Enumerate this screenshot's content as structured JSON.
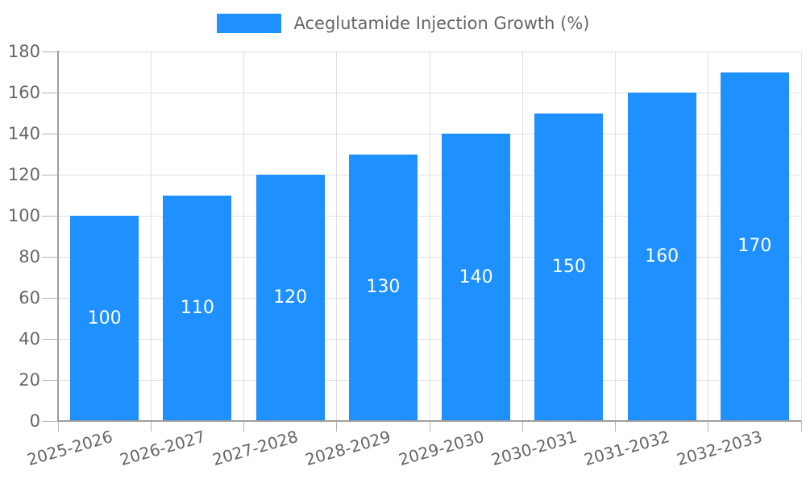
{
  "chart_data": {
    "type": "bar",
    "title": "",
    "legend": "Aceglutamide Injection Growth (%)",
    "legend_position": "top-center",
    "categories": [
      "2025-2026",
      "2026-2027",
      "2027-2028",
      "2028-2029",
      "2029-2030",
      "2030-2031",
      "2031-2032",
      "2032-2033"
    ],
    "values": [
      100,
      110,
      120,
      130,
      140,
      150,
      160,
      170
    ],
    "value_labels": [
      "100",
      "110",
      "120",
      "130",
      "140",
      "150",
      "160",
      "170"
    ],
    "value_label_position": "inside-center",
    "xlabel": "",
    "ylabel": "",
    "ylim": [
      0,
      180
    ],
    "ytick_step": 20,
    "grid": "horizontal-and-vertical",
    "colors": {
      "bar": "#1e90ff",
      "axis_line": "#9e9e9e",
      "grid_line": "#e0e0e0",
      "tick_line": "#b5b5b5",
      "axis_label": "#666666",
      "legend_text": "#666666",
      "value_label": "#ffffff",
      "background": "#ffffff"
    }
  }
}
